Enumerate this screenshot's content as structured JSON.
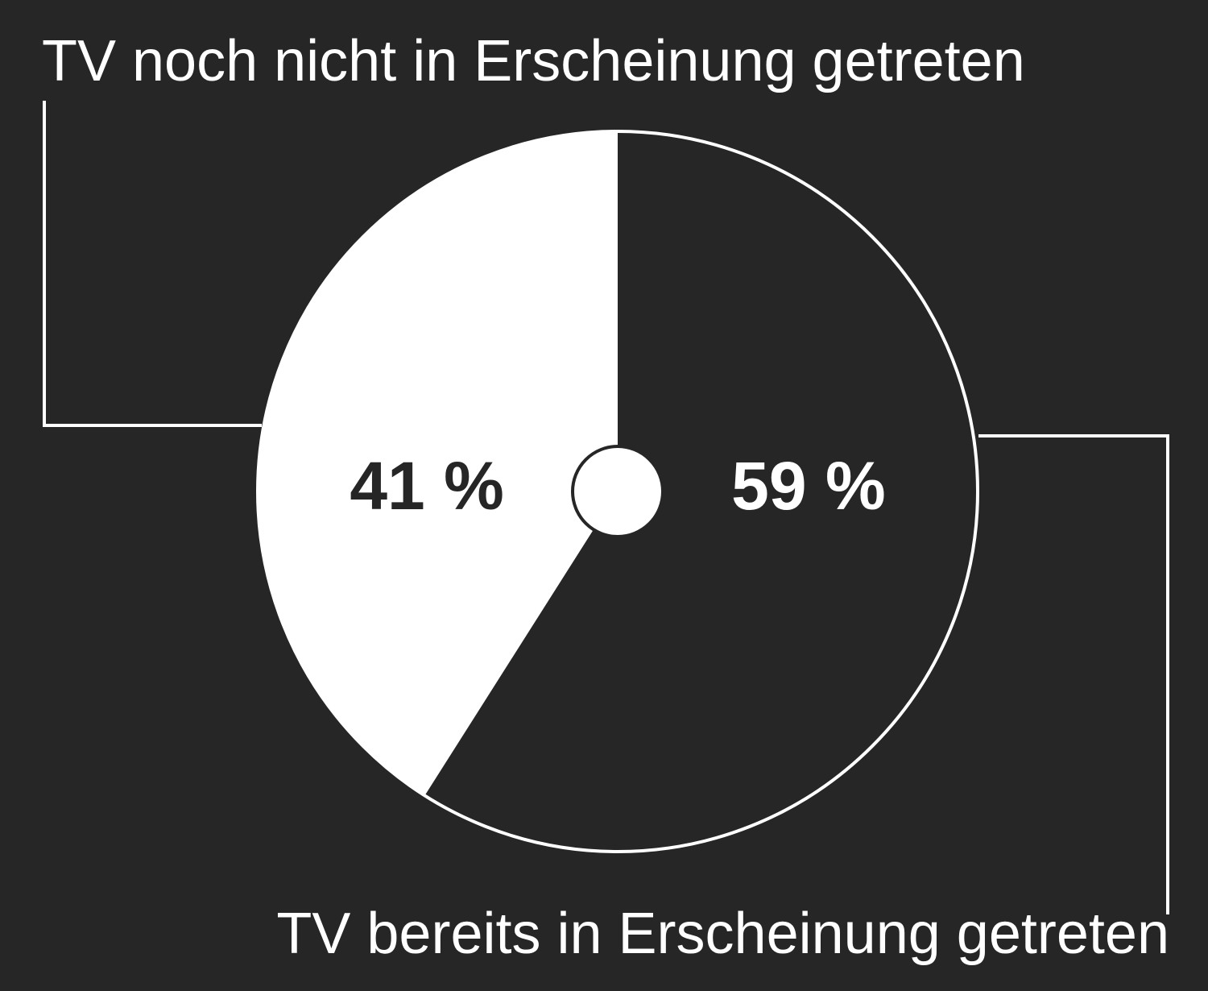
{
  "chart_data": {
    "type": "pie",
    "categories": [
      "TV bereits in Erscheinung getreten",
      "TV noch nicht in Erscheinung getreten"
    ],
    "values": [
      59,
      41
    ],
    "value_labels": [
      "59 %",
      "41 %"
    ],
    "colors": [
      "#262626",
      "#ffffff"
    ]
  }
}
